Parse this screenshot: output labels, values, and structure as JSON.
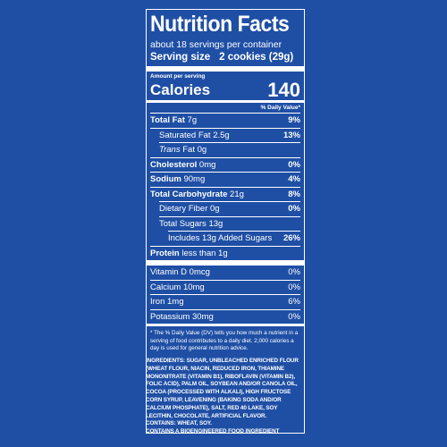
{
  "label": {
    "title": "Nutrition Facts",
    "servings_per_container": "about 18 servings per container",
    "serving_size_label": "Serving size",
    "serving_size_value": "2 cookies (29g)",
    "amount_per_serving": "Amount per serving",
    "calories_label": "Calories",
    "calories_value": "140",
    "daily_value_header": "% Daily Value*",
    "nutrients": [
      {
        "name": "Total Fat",
        "amount": "7g",
        "dv": "9%"
      },
      {
        "name": "Saturated Fat",
        "amount": "2.5g",
        "dv": "13%"
      },
      {
        "name": "Trans",
        "amount": "Fat 0g",
        "dv": ""
      },
      {
        "name": "Cholesterol",
        "amount": "0mg",
        "dv": "0%"
      },
      {
        "name": "Sodium",
        "amount": "90mg",
        "dv": "4%"
      },
      {
        "name": "Total Carbohydrate",
        "amount": "21g",
        "dv": "8%"
      },
      {
        "name": "Dietary Fiber",
        "amount": "0g",
        "dv": "0%"
      },
      {
        "name": "Total Sugars",
        "amount": "13g",
        "dv": ""
      },
      {
        "name": "Includes 13g Added Sugars",
        "amount": "",
        "dv": "26%"
      },
      {
        "name": "Protein",
        "amount": "less than 1g",
        "dv": ""
      }
    ],
    "vitamins": [
      {
        "name": "Vitamin D",
        "amount": "0mcg",
        "dv": "0%"
      },
      {
        "name": "Calcium",
        "amount": "10mg",
        "dv": "0%"
      },
      {
        "name": "Iron",
        "amount": "1mg",
        "dv": "6%"
      },
      {
        "name": "Potassium",
        "amount": "30mg",
        "dv": "0%"
      }
    ],
    "footnote": "* The % Daily Value (DV) tells you how much a nutrient in a serving of food contributes to a daily diet. 2,000 calories a day is used for general nutrition advice."
  },
  "ingredients": {
    "text": "INGREDIENTS: SUGAR, UNBLEACHED ENRICHED FLOUR (WHEAT FLOUR, NIACIN, REDUCED IRON, THIAMINE MONONITRATE (VITAMIN B1), RIBOFLAVIN (VITAMIN B2), FOLIC ACID), PALM OIL, SOYBEAN AND/OR CANOLA OIL, COCOA (PROCESSED WITH ALKALI), HIGH FRUCTOSE CORN SYRUP, LEAVENING (BAKING SODA AND/OR CALCIUM PHOSPHATE), SALT, RED 40 LAKE, SOY LECITHIN, CHOCOLATE, ARTIFICIAL FLAVOR.",
    "contains": "CONTAINS: WHEAT, SOY.",
    "bioengineered": "CONTAINS A BIOENGINEERED FOOD INGREDIENT"
  },
  "colors": {
    "background": "#1f4fa5",
    "text": "#ffffff"
  }
}
